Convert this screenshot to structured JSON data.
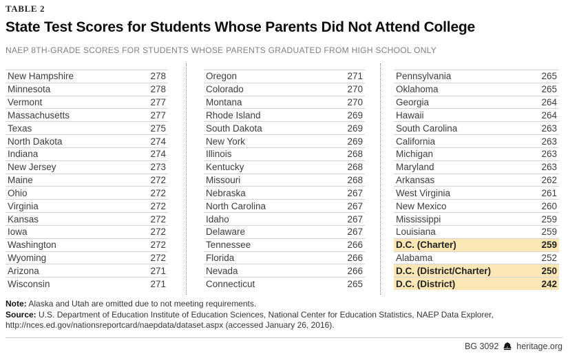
{
  "table_label": "TABLE 2",
  "title": "State Test Scores for Students Whose Parents Did Not Attend College",
  "subtitle": "NAEP 8TH-GRADE SCORES FOR STUDENTS WHOSE PARENTS GRADUATED FROM HIGH SCHOOL ONLY",
  "chart_data": {
    "type": "table",
    "title": "State Test Scores for Students Whose Parents Did Not Attend College",
    "subtitle": "NAEP 8TH-GRADE SCORES FOR STUDENTS WHOSE PARENTS GRADUATED FROM HIGH SCHOOL ONLY",
    "value_label": "NAEP 8th-grade score",
    "columns": [
      {
        "rows": [
          {
            "state": "New Hampshire",
            "score": 278,
            "highlight": false
          },
          {
            "state": "Minnesota",
            "score": 278,
            "highlight": false
          },
          {
            "state": "Vermont",
            "score": 277,
            "highlight": false
          },
          {
            "state": "Massachusetts",
            "score": 277,
            "highlight": false
          },
          {
            "state": "Texas",
            "score": 275,
            "highlight": false
          },
          {
            "state": "North Dakota",
            "score": 274,
            "highlight": false
          },
          {
            "state": "Indiana",
            "score": 274,
            "highlight": false
          },
          {
            "state": "New Jersey",
            "score": 273,
            "highlight": false
          },
          {
            "state": "Maine",
            "score": 272,
            "highlight": false
          },
          {
            "state": "Ohio",
            "score": 272,
            "highlight": false
          },
          {
            "state": "Virginia",
            "score": 272,
            "highlight": false
          },
          {
            "state": "Kansas",
            "score": 272,
            "highlight": false
          },
          {
            "state": "Iowa",
            "score": 272,
            "highlight": false
          },
          {
            "state": "Washington",
            "score": 272,
            "highlight": false
          },
          {
            "state": "Wyoming",
            "score": 272,
            "highlight": false
          },
          {
            "state": "Arizona",
            "score": 271,
            "highlight": false
          },
          {
            "state": "Wisconsin",
            "score": 271,
            "highlight": false
          }
        ]
      },
      {
        "rows": [
          {
            "state": "Oregon",
            "score": 271,
            "highlight": false
          },
          {
            "state": "Colorado",
            "score": 270,
            "highlight": false
          },
          {
            "state": "Montana",
            "score": 270,
            "highlight": false
          },
          {
            "state": "Rhode Island",
            "score": 269,
            "highlight": false
          },
          {
            "state": "South Dakota",
            "score": 269,
            "highlight": false
          },
          {
            "state": "New York",
            "score": 269,
            "highlight": false
          },
          {
            "state": "Illinois",
            "score": 268,
            "highlight": false
          },
          {
            "state": "Kentucky",
            "score": 268,
            "highlight": false
          },
          {
            "state": "Missouri",
            "score": 268,
            "highlight": false
          },
          {
            "state": "Nebraska",
            "score": 267,
            "highlight": false
          },
          {
            "state": "North Carolina",
            "score": 267,
            "highlight": false
          },
          {
            "state": "Idaho",
            "score": 267,
            "highlight": false
          },
          {
            "state": "Delaware",
            "score": 267,
            "highlight": false
          },
          {
            "state": "Tennessee",
            "score": 266,
            "highlight": false
          },
          {
            "state": "Florida",
            "score": 266,
            "highlight": false
          },
          {
            "state": "Nevada",
            "score": 266,
            "highlight": false
          },
          {
            "state": "Connecticut",
            "score": 265,
            "highlight": false
          }
        ]
      },
      {
        "rows": [
          {
            "state": "Pennsylvania",
            "score": 265,
            "highlight": false
          },
          {
            "state": "Oklahoma",
            "score": 265,
            "highlight": false
          },
          {
            "state": "Georgia",
            "score": 264,
            "highlight": false
          },
          {
            "state": "Hawaii",
            "score": 264,
            "highlight": false
          },
          {
            "state": "South Carolina",
            "score": 263,
            "highlight": false
          },
          {
            "state": "California",
            "score": 263,
            "highlight": false
          },
          {
            "state": "Michigan",
            "score": 263,
            "highlight": false
          },
          {
            "state": "Maryland",
            "score": 263,
            "highlight": false
          },
          {
            "state": "Arkansas",
            "score": 262,
            "highlight": false
          },
          {
            "state": "West Virginia",
            "score": 261,
            "highlight": false
          },
          {
            "state": "New Mexico",
            "score": 260,
            "highlight": false
          },
          {
            "state": "Mississippi",
            "score": 259,
            "highlight": false
          },
          {
            "state": "Louisiana",
            "score": 259,
            "highlight": false
          },
          {
            "state": "D.C. (Charter)",
            "score": 259,
            "highlight": true
          },
          {
            "state": "Alabama",
            "score": 252,
            "highlight": false
          },
          {
            "state": "D.C. (District/Charter)",
            "score": 250,
            "highlight": true
          },
          {
            "state": "D.C. (District)",
            "score": 242,
            "highlight": true
          }
        ]
      }
    ]
  },
  "note": {
    "label": "Note:",
    "text": " Alaska and Utah are omitted due to not meeting requirements."
  },
  "source": {
    "label": "Source:",
    "text": " U.S. Department of Education Institute of Education Sciences, National Center for Education Statistics, NAEP Data Explorer, http://nces.ed.gov/nationsreportcard/naepdata/dataset.aspx (accessed January 26, 2016)."
  },
  "footer": {
    "doc_id": "BG 3092",
    "site": "heritage.org",
    "logo_icon": "liberty-bell-icon"
  },
  "colors": {
    "highlight": "#FAE7B5",
    "row_border": "#D4D4D4",
    "column_divider": "#8F8F8F",
    "subtitle_gray": "#7F7F7F",
    "text": "#3C3C3C"
  }
}
